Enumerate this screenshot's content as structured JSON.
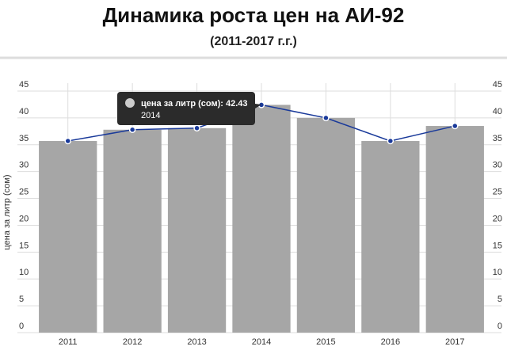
{
  "chart_data": {
    "type": "combo",
    "title": "Динамика роста цен на АИ-92",
    "subtitle": "(2011-2017 г.г.)",
    "y_label": "цена за литр (сом)",
    "categories": [
      "2011",
      "2012",
      "2013",
      "2014",
      "2015",
      "2016",
      "2017"
    ],
    "series": [
      {
        "name": "цена за литр (сом)",
        "type": "bar",
        "color": "#a6a6a6",
        "values": [
          35.7,
          37.8,
          38.1,
          42.43,
          40.0,
          35.7,
          38.5
        ]
      },
      {
        "type": "line",
        "color": "#1a3a9a",
        "values": [
          35.7,
          37.8,
          38.1,
          42.43,
          40.0,
          35.7,
          38.5
        ]
      }
    ],
    "ylim": [
      0,
      45
    ],
    "yticks": [
      0,
      5,
      10,
      15,
      20,
      25,
      30,
      35,
      40,
      45
    ],
    "y2lim": [
      0,
      45
    ],
    "y2ticks": [
      0,
      5,
      10,
      15,
      20,
      25,
      30,
      35,
      40,
      45
    ],
    "grid": true,
    "tooltip": {
      "text": "цена за литр (сом): 42.43",
      "subtext": "2014"
    }
  }
}
